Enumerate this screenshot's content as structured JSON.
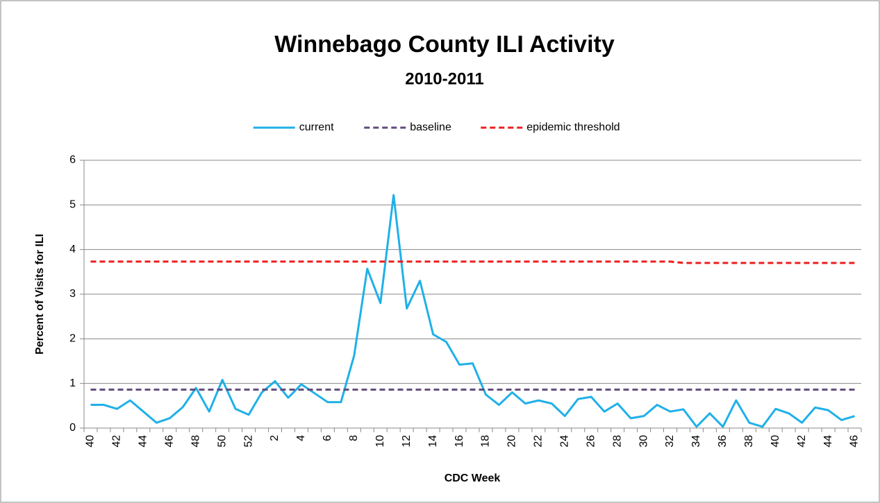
{
  "chart_data": {
    "type": "line",
    "title": "Winnebago County ILI Activity",
    "subtitle": "2010-2011",
    "x_label": "CDC Week",
    "y_label": "Percent of Visits for ILI",
    "categories": [
      40,
      null,
      42,
      null,
      44,
      null,
      46,
      null,
      48,
      null,
      50,
      null,
      52,
      null,
      2,
      null,
      4,
      null,
      6,
      null,
      8,
      null,
      10,
      null,
      12,
      null,
      14,
      null,
      16,
      null,
      18,
      null,
      20,
      null,
      22,
      null,
      24,
      null,
      26,
      null,
      28,
      null,
      30,
      null,
      32,
      null,
      34,
      null,
      36,
      null,
      38,
      null,
      40,
      null,
      42,
      null,
      44,
      null,
      46
    ],
    "series": [
      {
        "name": "current",
        "color": "#1fb0e8",
        "dash": false,
        "values": [
          0.52,
          0.52,
          0.43,
          0.62,
          0.37,
          0.12,
          0.22,
          0.47,
          0.9,
          0.37,
          1.08,
          0.43,
          0.3,
          0.8,
          1.05,
          0.68,
          0.98,
          0.78,
          0.58,
          0.58,
          1.62,
          3.57,
          2.8,
          5.22,
          2.68,
          3.3,
          2.1,
          1.93,
          1.42,
          1.45,
          0.75,
          0.52,
          0.8,
          0.55,
          0.62,
          0.55,
          0.27,
          0.65,
          0.7,
          0.37,
          0.55,
          0.22,
          0.27,
          0.52,
          0.37,
          0.42,
          0.03,
          0.33,
          0.03,
          0.62,
          0.12,
          0.03,
          0.43,
          0.33,
          0.12,
          0.46,
          0.4,
          0.18,
          0.27
        ]
      },
      {
        "name": "baseline",
        "color": "#604a7b",
        "dash": true,
        "values": [
          0.86,
          0.86,
          0.86,
          0.86,
          0.86,
          0.86,
          0.86,
          0.86,
          0.86,
          0.86,
          0.86,
          0.86,
          0.86,
          0.86,
          0.86,
          0.86,
          0.86,
          0.86,
          0.86,
          0.86,
          0.86,
          0.86,
          0.86,
          0.86,
          0.86,
          0.86,
          0.86,
          0.86,
          0.86,
          0.86,
          0.86,
          0.86,
          0.86,
          0.86,
          0.86,
          0.86,
          0.86,
          0.86,
          0.86,
          0.86,
          0.86,
          0.86,
          0.86,
          0.86,
          0.86,
          0.86,
          0.86,
          0.86,
          0.86,
          0.86,
          0.86,
          0.86,
          0.86,
          0.86,
          0.86,
          0.86,
          0.86,
          0.86,
          0.86
        ]
      },
      {
        "name": "epidemic threshold",
        "color": "#ee1c1c",
        "dash": true,
        "values": [
          3.73,
          3.73,
          3.73,
          3.73,
          3.73,
          3.73,
          3.73,
          3.73,
          3.73,
          3.73,
          3.73,
          3.73,
          3.73,
          3.73,
          3.73,
          3.73,
          3.73,
          3.73,
          3.73,
          3.73,
          3.73,
          3.73,
          3.73,
          3.73,
          3.73,
          3.73,
          3.73,
          3.73,
          3.73,
          3.73,
          3.73,
          3.73,
          3.73,
          3.73,
          3.73,
          3.73,
          3.73,
          3.73,
          3.73,
          3.73,
          3.73,
          3.73,
          3.73,
          3.73,
          3.73,
          3.7,
          3.7,
          3.7,
          3.7,
          3.7,
          3.7,
          3.7,
          3.7,
          3.7,
          3.7,
          3.7,
          3.7,
          3.7,
          3.7
        ]
      }
    ],
    "ylim": [
      0,
      6
    ],
    "yticks": [
      0,
      1,
      2,
      3,
      4,
      5,
      6
    ],
    "grid": true,
    "legend": "top"
  }
}
